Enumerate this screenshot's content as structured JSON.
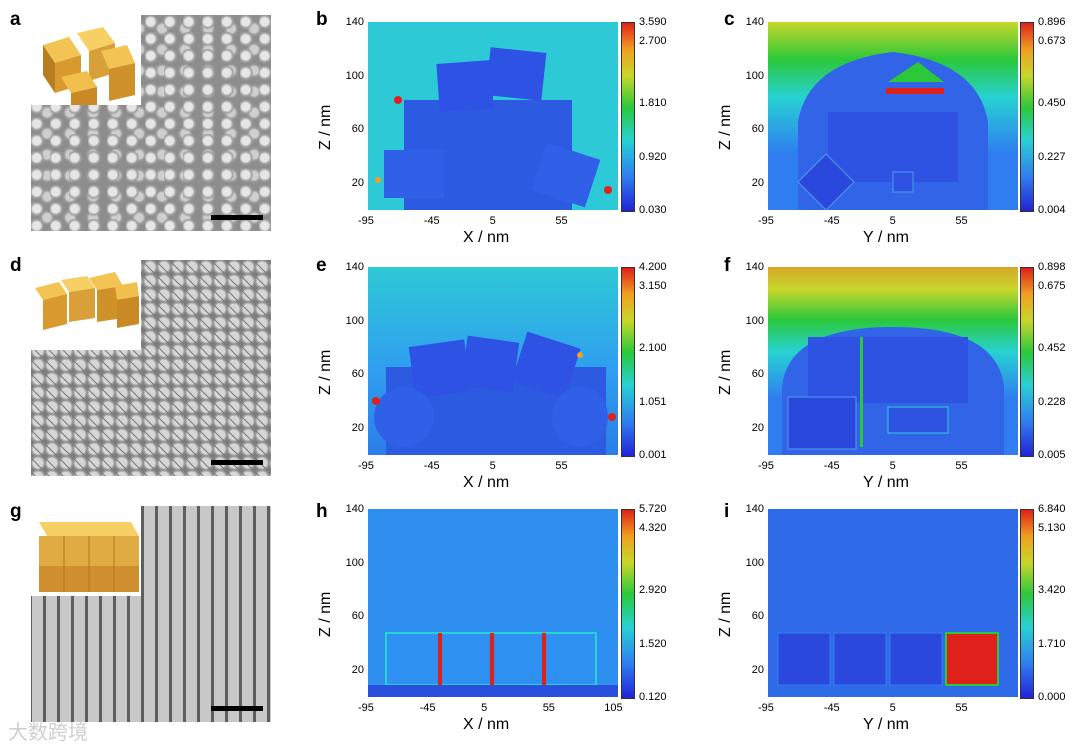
{
  "figure": {
    "panels": {
      "a": "a",
      "b": "b",
      "c": "c",
      "d": "d",
      "e": "e",
      "f": "f",
      "g": "g",
      "h": "h",
      "i": "i"
    },
    "axes": {
      "b": {
        "xlabel": "X / nm",
        "ylabel": "Z / nm",
        "xticks": [
          "-95",
          "-45",
          "5",
          "55"
        ],
        "yticks": [
          "140",
          "100",
          "60",
          "20"
        ],
        "cticks": [
          "3.590",
          "2.700",
          "1.810",
          "0.920",
          "0.030"
        ]
      },
      "c": {
        "xlabel": "Y / nm",
        "ylabel": "Z / nm",
        "xticks": [
          "-95",
          "-45",
          "5",
          "55"
        ],
        "yticks": [
          "140",
          "100",
          "60",
          "20"
        ],
        "cticks": [
          "0.896",
          "0.673",
          "0.450",
          "0.227",
          "0.004"
        ]
      },
      "e": {
        "xlabel": "X / nm",
        "ylabel": "Z / nm",
        "xticks": [
          "-95",
          "-45",
          "5",
          "55"
        ],
        "yticks": [
          "140",
          "100",
          "60",
          "20"
        ],
        "cticks": [
          "4.200",
          "3.150",
          "2.100",
          "1.051",
          "0.001"
        ]
      },
      "f": {
        "xlabel": "Y / nm",
        "ylabel": "Z / nm",
        "xticks": [
          "-95",
          "-45",
          "5",
          "55"
        ],
        "yticks": [
          "140",
          "100",
          "60",
          "20"
        ],
        "cticks": [
          "0.898",
          "0.675",
          "0.452",
          "0.228",
          "0.005"
        ]
      },
      "h": {
        "xlabel": "X / nm",
        "ylabel": "Z / nm",
        "xticks": [
          "-95",
          "-45",
          "5",
          "55",
          "105"
        ],
        "yticks": [
          "140",
          "100",
          "60",
          "20"
        ],
        "cticks": [
          "5.720",
          "4.320",
          "2.920",
          "1.520",
          "0.120"
        ]
      },
      "i": {
        "xlabel": "Y / nm",
        "ylabel": "Z / nm",
        "xticks": [
          "-95",
          "-45",
          "5",
          "55"
        ],
        "yticks": [
          "140",
          "100",
          "60",
          "20"
        ],
        "cticks": [
          "6.840",
          "5.130",
          "3.420",
          "1.710",
          "0.000"
        ]
      }
    },
    "colors": {
      "low": "#2222d6",
      "mid_low": "#27d2d2",
      "mid": "#2bc83a",
      "high": "#e0201a",
      "field_bg": "#2ec9d6"
    },
    "watermark": "大数跨境"
  }
}
